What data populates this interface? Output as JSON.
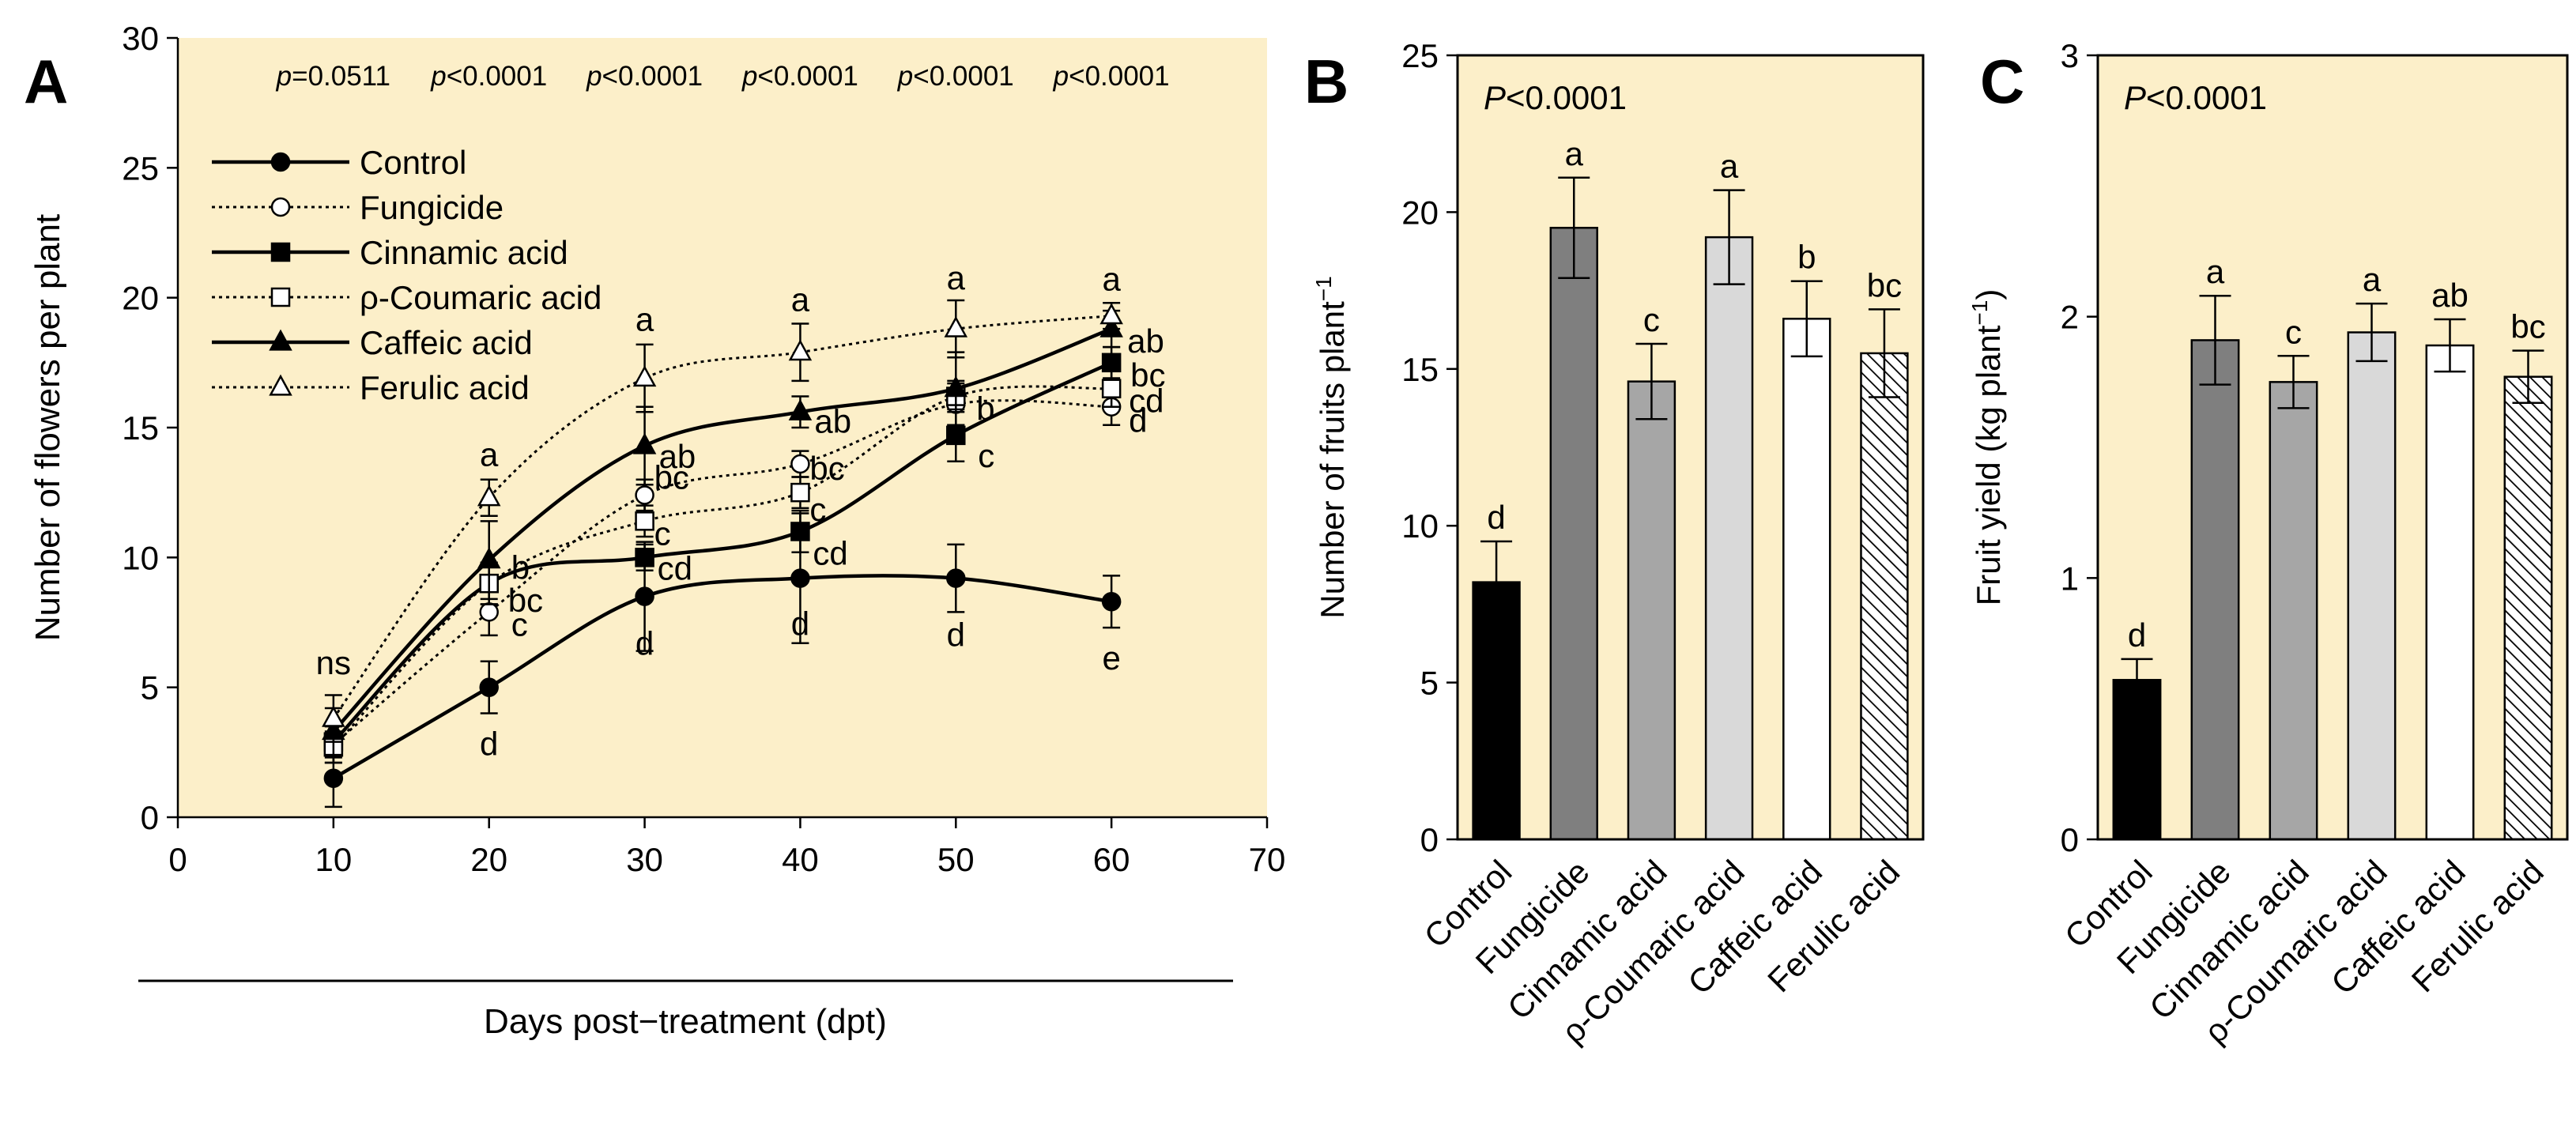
{
  "colors": {
    "plot_bg": "#fcefc9",
    "ink": "#000000",
    "bar_fills": [
      "#000000",
      "#7f7f7f",
      "#a6a6a6",
      "#d9d9d9",
      "#ffffff",
      "hatch"
    ]
  },
  "chart_data": [
    {
      "panel": "A",
      "type": "line",
      "xlabel": "Days post−treatment  (dpt)",
      "ylabel": "Number  of flowers per plant",
      "xlim": [
        0,
        70
      ],
      "ylim": [
        0,
        30
      ],
      "x_ticks": [
        "0",
        "10",
        "20",
        "30",
        "40",
        "50",
        "60",
        "70"
      ],
      "y_ticks": [
        "0",
        "5",
        "10",
        "15",
        "20",
        "25",
        "30"
      ],
      "x": [
        10,
        20,
        30,
        40,
        50,
        60
      ],
      "p_values": [
        {
          "prefix": "p",
          "value": "=0.0511"
        },
        {
          "prefix": "p",
          "value": "<0.0001"
        },
        {
          "prefix": "p",
          "value": "<0.0001"
        },
        {
          "prefix": "p",
          "value": "<0.0001"
        },
        {
          "prefix": "p",
          "value": "<0.0001"
        },
        {
          "prefix": "p",
          "value": "<0.0001"
        }
      ],
      "series": [
        {
          "name": "Control",
          "line": "solid",
          "marker": "circle",
          "filled": true,
          "values": [
            1.5,
            5.0,
            8.5,
            9.2,
            9.2,
            8.3
          ],
          "errors": [
            1.1,
            1.0,
            2.1,
            2.5,
            1.3,
            1.0
          ],
          "letters": [
            "",
            "d",
            "d",
            "d",
            "d",
            "e"
          ]
        },
        {
          "name": "Fungicide",
          "line": "dotted",
          "marker": "circle",
          "filled": false,
          "values": [
            2.8,
            7.9,
            12.4,
            13.6,
            15.9,
            15.8
          ],
          "errors": [
            0.7,
            0.9,
            0.6,
            0.5,
            0.8,
            0.7
          ],
          "letters": [
            "",
            "c",
            "bc",
            "bc",
            "",
            "d"
          ]
        },
        {
          "name": "Cinnamic acid",
          "line": "solid",
          "marker": "square",
          "filled": true,
          "values": [
            2.9,
            9.0,
            10.0,
            11.0,
            14.7,
            17.5
          ],
          "errors": [
            0.6,
            0.8,
            0.5,
            0.8,
            1.0,
            0.6
          ],
          "letters": [
            "",
            "bc",
            "cd",
            "cd",
            "c",
            "bc"
          ]
        },
        {
          "name": "ρ-Coumaric acid",
          "line": "dotted",
          "marker": "square",
          "filled": false,
          "values": [
            2.7,
            9.0,
            11.4,
            12.5,
            16.2,
            16.5
          ],
          "errors": [
            0.6,
            0.8,
            0.6,
            0.6,
            0.6,
            0.7
          ],
          "letters": [
            "",
            "",
            "c",
            "c",
            "",
            "cd"
          ]
        },
        {
          "name": "Caffeic acid",
          "line": "solid",
          "marker": "triangle",
          "filled": true,
          "values": [
            3.3,
            9.9,
            14.3,
            15.6,
            16.5,
            18.8
          ],
          "errors": [
            0.9,
            1.5,
            1.5,
            0.6,
            1.4,
            0.7
          ],
          "letters": [
            "",
            "b",
            "ab",
            "ab",
            "b",
            "ab"
          ]
        },
        {
          "name": "Ferulic acid",
          "line": "dotted",
          "marker": "triangle",
          "filled": false,
          "values": [
            3.8,
            12.3,
            16.9,
            17.9,
            18.8,
            19.3
          ],
          "errors": [
            0.9,
            0.7,
            1.3,
            1.1,
            1.1,
            0.5
          ],
          "letters": [
            "ns",
            "a",
            "a",
            "a",
            "a",
            "a"
          ]
        }
      ]
    },
    {
      "panel": "B",
      "type": "bar",
      "ylabel": "Number of fruits plant",
      "ylabel_sup": "−1",
      "annotation_prefix": "P",
      "annotation_value": "<0.0001",
      "ylim": [
        0,
        25
      ],
      "y_ticks": [
        "0",
        "5",
        "10",
        "15",
        "20",
        "25"
      ],
      "categories": [
        "Control",
        "Fungicide",
        "Cinnamic acid",
        "ρ-Coumaric acid",
        "Caffeic acid",
        "Ferulic acid"
      ],
      "values": [
        8.2,
        19.5,
        14.6,
        19.2,
        16.6,
        15.5
      ],
      "errors": [
        1.3,
        1.6,
        1.2,
        1.5,
        1.2,
        1.4
      ],
      "letters": [
        "d",
        "a",
        "c",
        "a",
        "b",
        "bc"
      ]
    },
    {
      "panel": "C",
      "type": "bar",
      "ylabel": "Fruit yield (kg plant",
      "ylabel_sup": "−1",
      "ylabel_suffix": ")",
      "annotation_prefix": "P",
      "annotation_value": "<0.0001",
      "ylim": [
        0,
        3
      ],
      "y_ticks": [
        "0",
        "1",
        "2",
        "3"
      ],
      "categories": [
        "Control",
        "Fungicide",
        "Cinnamic acid",
        "ρ-Coumaric acid",
        "Caffeic acid",
        "Ferulic acid"
      ],
      "values": [
        0.61,
        1.91,
        1.75,
        1.94,
        1.89,
        1.77
      ],
      "errors": [
        0.08,
        0.17,
        0.1,
        0.11,
        0.1,
        0.1
      ],
      "letters": [
        "d",
        "a",
        "c",
        "a",
        "ab",
        "bc"
      ]
    }
  ]
}
